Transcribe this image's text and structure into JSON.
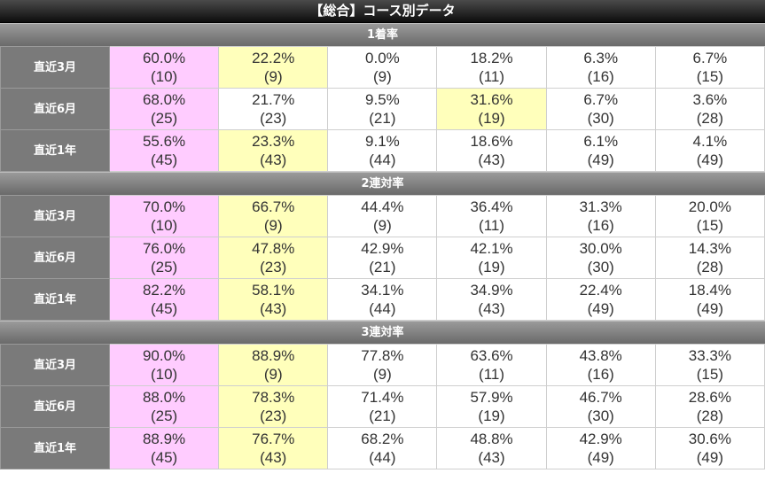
{
  "title": "【総合】コース別データ",
  "colors": {
    "pink": "#ffccff",
    "yellow": "#ffffbb",
    "header": "#7a7a7a"
  },
  "sections": [
    {
      "label": "1着率",
      "rows": [
        {
          "label": "直近3月",
          "cells": [
            {
              "pct": "60.0%",
              "cnt": "(10)",
              "hl": "pink"
            },
            {
              "pct": "22.2%",
              "cnt": "(9)",
              "hl": "yellow"
            },
            {
              "pct": "0.0%",
              "cnt": "(9)",
              "hl": ""
            },
            {
              "pct": "18.2%",
              "cnt": "(11)",
              "hl": ""
            },
            {
              "pct": "6.3%",
              "cnt": "(16)",
              "hl": ""
            },
            {
              "pct": "6.7%",
              "cnt": "(15)",
              "hl": ""
            }
          ]
        },
        {
          "label": "直近6月",
          "cells": [
            {
              "pct": "68.0%",
              "cnt": "(25)",
              "hl": "pink"
            },
            {
              "pct": "21.7%",
              "cnt": "(23)",
              "hl": ""
            },
            {
              "pct": "9.5%",
              "cnt": "(21)",
              "hl": ""
            },
            {
              "pct": "31.6%",
              "cnt": "(19)",
              "hl": "yellow"
            },
            {
              "pct": "6.7%",
              "cnt": "(30)",
              "hl": ""
            },
            {
              "pct": "3.6%",
              "cnt": "(28)",
              "hl": ""
            }
          ]
        },
        {
          "label": "直近1年",
          "cells": [
            {
              "pct": "55.6%",
              "cnt": "(45)",
              "hl": "pink"
            },
            {
              "pct": "23.3%",
              "cnt": "(43)",
              "hl": "yellow"
            },
            {
              "pct": "9.1%",
              "cnt": "(44)",
              "hl": ""
            },
            {
              "pct": "18.6%",
              "cnt": "(43)",
              "hl": ""
            },
            {
              "pct": "6.1%",
              "cnt": "(49)",
              "hl": ""
            },
            {
              "pct": "4.1%",
              "cnt": "(49)",
              "hl": ""
            }
          ]
        }
      ]
    },
    {
      "label": "2連対率",
      "rows": [
        {
          "label": "直近3月",
          "cells": [
            {
              "pct": "70.0%",
              "cnt": "(10)",
              "hl": "pink"
            },
            {
              "pct": "66.7%",
              "cnt": "(9)",
              "hl": "yellow"
            },
            {
              "pct": "44.4%",
              "cnt": "(9)",
              "hl": ""
            },
            {
              "pct": "36.4%",
              "cnt": "(11)",
              "hl": ""
            },
            {
              "pct": "31.3%",
              "cnt": "(16)",
              "hl": ""
            },
            {
              "pct": "20.0%",
              "cnt": "(15)",
              "hl": ""
            }
          ]
        },
        {
          "label": "直近6月",
          "cells": [
            {
              "pct": "76.0%",
              "cnt": "(25)",
              "hl": "pink"
            },
            {
              "pct": "47.8%",
              "cnt": "(23)",
              "hl": "yellow"
            },
            {
              "pct": "42.9%",
              "cnt": "(21)",
              "hl": ""
            },
            {
              "pct": "42.1%",
              "cnt": "(19)",
              "hl": ""
            },
            {
              "pct": "30.0%",
              "cnt": "(30)",
              "hl": ""
            },
            {
              "pct": "14.3%",
              "cnt": "(28)",
              "hl": ""
            }
          ]
        },
        {
          "label": "直近1年",
          "cells": [
            {
              "pct": "82.2%",
              "cnt": "(45)",
              "hl": "pink"
            },
            {
              "pct": "58.1%",
              "cnt": "(43)",
              "hl": "yellow"
            },
            {
              "pct": "34.1%",
              "cnt": "(44)",
              "hl": ""
            },
            {
              "pct": "34.9%",
              "cnt": "(43)",
              "hl": ""
            },
            {
              "pct": "22.4%",
              "cnt": "(49)",
              "hl": ""
            },
            {
              "pct": "18.4%",
              "cnt": "(49)",
              "hl": ""
            }
          ]
        }
      ]
    },
    {
      "label": "3連対率",
      "rows": [
        {
          "label": "直近3月",
          "cells": [
            {
              "pct": "90.0%",
              "cnt": "(10)",
              "hl": "pink"
            },
            {
              "pct": "88.9%",
              "cnt": "(9)",
              "hl": "yellow"
            },
            {
              "pct": "77.8%",
              "cnt": "(9)",
              "hl": ""
            },
            {
              "pct": "63.6%",
              "cnt": "(11)",
              "hl": ""
            },
            {
              "pct": "43.8%",
              "cnt": "(16)",
              "hl": ""
            },
            {
              "pct": "33.3%",
              "cnt": "(15)",
              "hl": ""
            }
          ]
        },
        {
          "label": "直近6月",
          "cells": [
            {
              "pct": "88.0%",
              "cnt": "(25)",
              "hl": "pink"
            },
            {
              "pct": "78.3%",
              "cnt": "(23)",
              "hl": "yellow"
            },
            {
              "pct": "71.4%",
              "cnt": "(21)",
              "hl": ""
            },
            {
              "pct": "57.9%",
              "cnt": "(19)",
              "hl": ""
            },
            {
              "pct": "46.7%",
              "cnt": "(30)",
              "hl": ""
            },
            {
              "pct": "28.6%",
              "cnt": "(28)",
              "hl": ""
            }
          ]
        },
        {
          "label": "直近1年",
          "cells": [
            {
              "pct": "88.9%",
              "cnt": "(45)",
              "hl": "pink"
            },
            {
              "pct": "76.7%",
              "cnt": "(43)",
              "hl": "yellow"
            },
            {
              "pct": "68.2%",
              "cnt": "(44)",
              "hl": ""
            },
            {
              "pct": "48.8%",
              "cnt": "(43)",
              "hl": ""
            },
            {
              "pct": "42.9%",
              "cnt": "(49)",
              "hl": ""
            },
            {
              "pct": "30.6%",
              "cnt": "(49)",
              "hl": ""
            }
          ]
        }
      ]
    }
  ]
}
